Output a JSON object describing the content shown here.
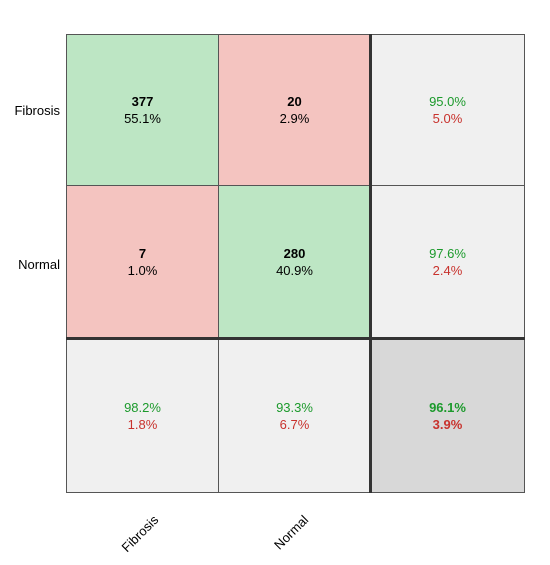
{
  "chart_data": {
    "type": "heatmap",
    "subtype": "confusion-matrix",
    "row_labels": [
      "Fibrosis",
      "Normal"
    ],
    "col_labels": [
      "Fibrosis",
      "Normal"
    ],
    "matrix": [
      [
        {
          "count": "377",
          "pct": "55.1%"
        },
        {
          "count": "20",
          "pct": "2.9%"
        }
      ],
      [
        {
          "count": "7",
          "pct": "1.0%"
        },
        {
          "count": "280",
          "pct": "40.9%"
        }
      ]
    ],
    "row_summary": [
      {
        "correct": "95.0%",
        "wrong": "5.0%"
      },
      {
        "correct": "97.6%",
        "wrong": "2.4%"
      }
    ],
    "col_summary": [
      {
        "correct": "98.2%",
        "wrong": "1.8%"
      },
      {
        "correct": "93.3%",
        "wrong": "6.7%"
      }
    ],
    "overall": {
      "correct": "96.1%",
      "wrong": "3.9%"
    },
    "colors": {
      "correct_cell": "#bde6c4",
      "wrong_cell": "#f4c4c0",
      "summary_cell": "#f0f0f0",
      "overall_cell": "#d8d8d8",
      "good_text": "#1c9a2c",
      "bad_text": "#c8322d"
    }
  }
}
